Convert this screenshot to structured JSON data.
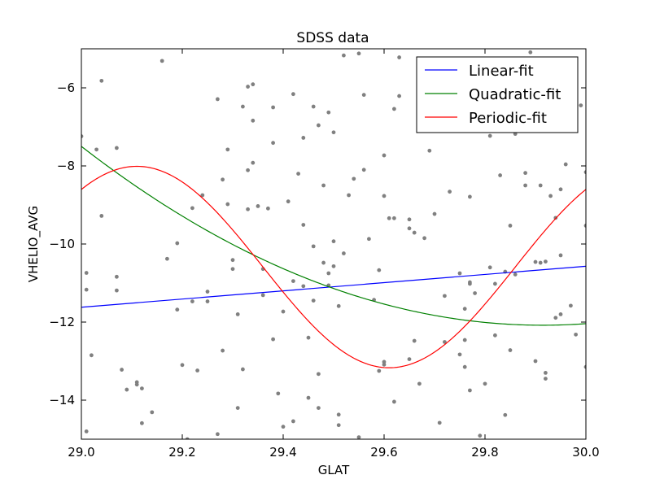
{
  "chart_data": {
    "type": "scatter",
    "title": "SDSS data",
    "xlabel": "GLAT",
    "ylabel": "VHELIO_AVG",
    "xlim": [
      29.0,
      30.0
    ],
    "ylim": [
      -15.0,
      -5.0
    ],
    "x_ticks": [
      29.0,
      29.2,
      29.4,
      29.6,
      29.8,
      30.0
    ],
    "x_tick_labels": [
      "29.0",
      "29.2",
      "29.4",
      "29.6",
      "29.8",
      "30.0"
    ],
    "y_ticks": [
      -14,
      -12,
      -10,
      -8,
      -6
    ],
    "y_tick_labels": [
      "−14",
      "−12",
      "−10",
      "−8",
      "−6"
    ],
    "grid": false,
    "legend_position": "upper-right",
    "scatter_color": "#808080",
    "points": [
      [
        29.0,
        -7.24
      ],
      [
        29.01,
        -10.74
      ],
      [
        29.01,
        -11.17
      ],
      [
        29.01,
        -14.8
      ],
      [
        29.02,
        -12.85
      ],
      [
        29.03,
        -7.58
      ],
      [
        29.04,
        -9.28
      ],
      [
        29.04,
        -5.82
      ],
      [
        29.07,
        -7.54
      ],
      [
        29.07,
        -10.84
      ],
      [
        29.07,
        -11.19
      ],
      [
        29.08,
        -13.22
      ],
      [
        29.09,
        -13.73
      ],
      [
        29.11,
        -13.54
      ],
      [
        29.11,
        -13.6
      ],
      [
        29.12,
        -13.7
      ],
      [
        29.12,
        -14.59
      ],
      [
        29.14,
        -14.31
      ],
      [
        29.16,
        -5.31
      ],
      [
        29.17,
        -10.38
      ],
      [
        29.19,
        -9.98
      ],
      [
        29.19,
        -11.68
      ],
      [
        29.2,
        -13.1
      ],
      [
        29.21,
        -15.0
      ],
      [
        29.22,
        -9.08
      ],
      [
        29.22,
        -11.47
      ],
      [
        29.23,
        -13.24
      ],
      [
        29.24,
        -8.75
      ],
      [
        29.25,
        -11.47
      ],
      [
        29.25,
        -11.22
      ],
      [
        29.27,
        -6.29
      ],
      [
        29.27,
        -14.87
      ],
      [
        29.28,
        -12.73
      ],
      [
        29.28,
        -8.35
      ],
      [
        29.29,
        -8.98
      ],
      [
        29.29,
        -7.58
      ],
      [
        29.3,
        -10.41
      ],
      [
        29.3,
        -10.64
      ],
      [
        29.31,
        -14.2
      ],
      [
        29.31,
        -11.8
      ],
      [
        29.32,
        -6.48
      ],
      [
        29.32,
        -13.21
      ],
      [
        29.33,
        -8.11
      ],
      [
        29.33,
        -9.11
      ],
      [
        29.33,
        -5.97
      ],
      [
        29.34,
        -7.92
      ],
      [
        29.34,
        -6.84
      ],
      [
        29.34,
        -5.91
      ],
      [
        29.35,
        -9.03
      ],
      [
        29.36,
        -10.64
      ],
      [
        29.36,
        -11.31
      ],
      [
        29.37,
        -9.09
      ],
      [
        29.38,
        -12.44
      ],
      [
        29.38,
        -6.5
      ],
      [
        29.38,
        -7.41
      ],
      [
        29.39,
        -13.83
      ],
      [
        29.4,
        -11.73
      ],
      [
        29.4,
        -14.68
      ],
      [
        29.41,
        -8.91
      ],
      [
        29.42,
        -14.54
      ],
      [
        29.42,
        -6.16
      ],
      [
        29.42,
        -10.95
      ],
      [
        29.43,
        -8.2
      ],
      [
        29.44,
        -9.51
      ],
      [
        29.44,
        -11.08
      ],
      [
        29.44,
        -7.28
      ],
      [
        29.45,
        -12.4
      ],
      [
        29.45,
        -13.94
      ],
      [
        29.46,
        -11.45
      ],
      [
        29.46,
        -10.06
      ],
      [
        29.46,
        -6.48
      ],
      [
        29.47,
        -13.33
      ],
      [
        29.47,
        -6.96
      ],
      [
        29.47,
        -14.2
      ],
      [
        29.48,
        -10.48
      ],
      [
        29.48,
        -8.5
      ],
      [
        29.49,
        -6.63
      ],
      [
        29.49,
        -11.06
      ],
      [
        29.49,
        -10.75
      ],
      [
        29.5,
        -9.93
      ],
      [
        29.5,
        -7.14
      ],
      [
        29.5,
        -10.57
      ],
      [
        29.51,
        -11.59
      ],
      [
        29.51,
        -14.64
      ],
      [
        29.51,
        -14.37
      ],
      [
        29.52,
        -5.17
      ],
      [
        29.52,
        -10.24
      ],
      [
        29.53,
        -8.75
      ],
      [
        29.54,
        -8.33
      ],
      [
        29.55,
        -14.95
      ],
      [
        29.55,
        -5.12
      ],
      [
        29.56,
        -6.18
      ],
      [
        29.56,
        -8.1
      ],
      [
        29.57,
        -9.87
      ],
      [
        29.58,
        -11.43
      ],
      [
        29.59,
        -13.25
      ],
      [
        29.59,
        -10.67
      ],
      [
        29.6,
        -13.02
      ],
      [
        29.6,
        -13.09
      ],
      [
        29.6,
        -8.77
      ],
      [
        29.6,
        -7.73
      ],
      [
        29.61,
        -9.34
      ],
      [
        29.62,
        -14.04
      ],
      [
        29.62,
        -9.34
      ],
      [
        29.62,
        -6.54
      ],
      [
        29.63,
        -6.21
      ],
      [
        29.63,
        -5.22
      ],
      [
        29.65,
        -9.6
      ],
      [
        29.65,
        -9.37
      ],
      [
        29.65,
        -12.95
      ],
      [
        29.66,
        -12.48
      ],
      [
        29.66,
        -9.71
      ],
      [
        29.67,
        -13.58
      ],
      [
        29.68,
        -9.85
      ],
      [
        29.69,
        -7.61
      ],
      [
        29.7,
        -9.23
      ],
      [
        29.71,
        -14.58
      ],
      [
        29.72,
        -12.51
      ],
      [
        29.72,
        -11.33
      ],
      [
        29.73,
        -8.66
      ],
      [
        29.75,
        -12.83
      ],
      [
        29.75,
        -10.75
      ],
      [
        29.76,
        -11.66
      ],
      [
        29.76,
        -12.46
      ],
      [
        29.76,
        -13.15
      ],
      [
        29.77,
        -8.79
      ],
      [
        29.77,
        -13.75
      ],
      [
        29.77,
        -11.02
      ],
      [
        29.77,
        -10.98
      ],
      [
        29.78,
        -11.26
      ],
      [
        29.79,
        -14.91
      ],
      [
        29.8,
        -13.58
      ],
      [
        29.81,
        -7.23
      ],
      [
        29.81,
        -10.6
      ],
      [
        29.82,
        -12.34
      ],
      [
        29.82,
        -11.02
      ],
      [
        29.83,
        -8.24
      ],
      [
        29.84,
        -14.38
      ],
      [
        29.84,
        -10.71
      ],
      [
        29.85,
        -9.53
      ],
      [
        29.85,
        -12.72
      ],
      [
        29.86,
        -7.18
      ],
      [
        29.86,
        -10.78
      ],
      [
        29.87,
        -6.99
      ],
      [
        29.88,
        -8.18
      ],
      [
        29.88,
        -8.5
      ],
      [
        29.89,
        -5.09
      ],
      [
        29.89,
        -6.3
      ],
      [
        29.9,
        -13.0
      ],
      [
        29.9,
        -10.46
      ],
      [
        29.91,
        -10.48
      ],
      [
        29.91,
        -8.5
      ],
      [
        29.92,
        -10.45
      ],
      [
        29.92,
        -13.3
      ],
      [
        29.92,
        -13.45
      ],
      [
        29.93,
        -8.77
      ],
      [
        29.94,
        -9.33
      ],
      [
        29.94,
        -11.89
      ],
      [
        29.95,
        -11.8
      ],
      [
        29.95,
        -8.6
      ],
      [
        29.95,
        -10.29
      ],
      [
        29.96,
        -7.96
      ],
      [
        29.97,
        -11.58
      ],
      [
        29.98,
        -12.32
      ],
      [
        29.99,
        -6.45
      ],
      [
        30.0,
        -8.16
      ],
      [
        30.0,
        -9.53
      ],
      [
        30.0,
        -13.15
      ]
    ],
    "series": [
      {
        "name": "Linear-fit",
        "color": "#0000ff",
        "model": "linear",
        "coefficients": {
          "intercept_at_29": -11.62,
          "slope": 1.05
        }
      },
      {
        "name": "Quadratic-fit",
        "color": "#008000",
        "model": "quadratic",
        "coefficients": {
          "a": 5.48,
          "b": -10.02,
          "c": -7.5,
          "x0": 29.0
        }
      },
      {
        "name": "Periodic-fit",
        "color": "#ff0000",
        "model": "sinusoid",
        "coefficients": {
          "mean": -10.59,
          "amplitude": 2.58,
          "period": 1.0,
          "phase_x": 29.36
        }
      }
    ]
  }
}
